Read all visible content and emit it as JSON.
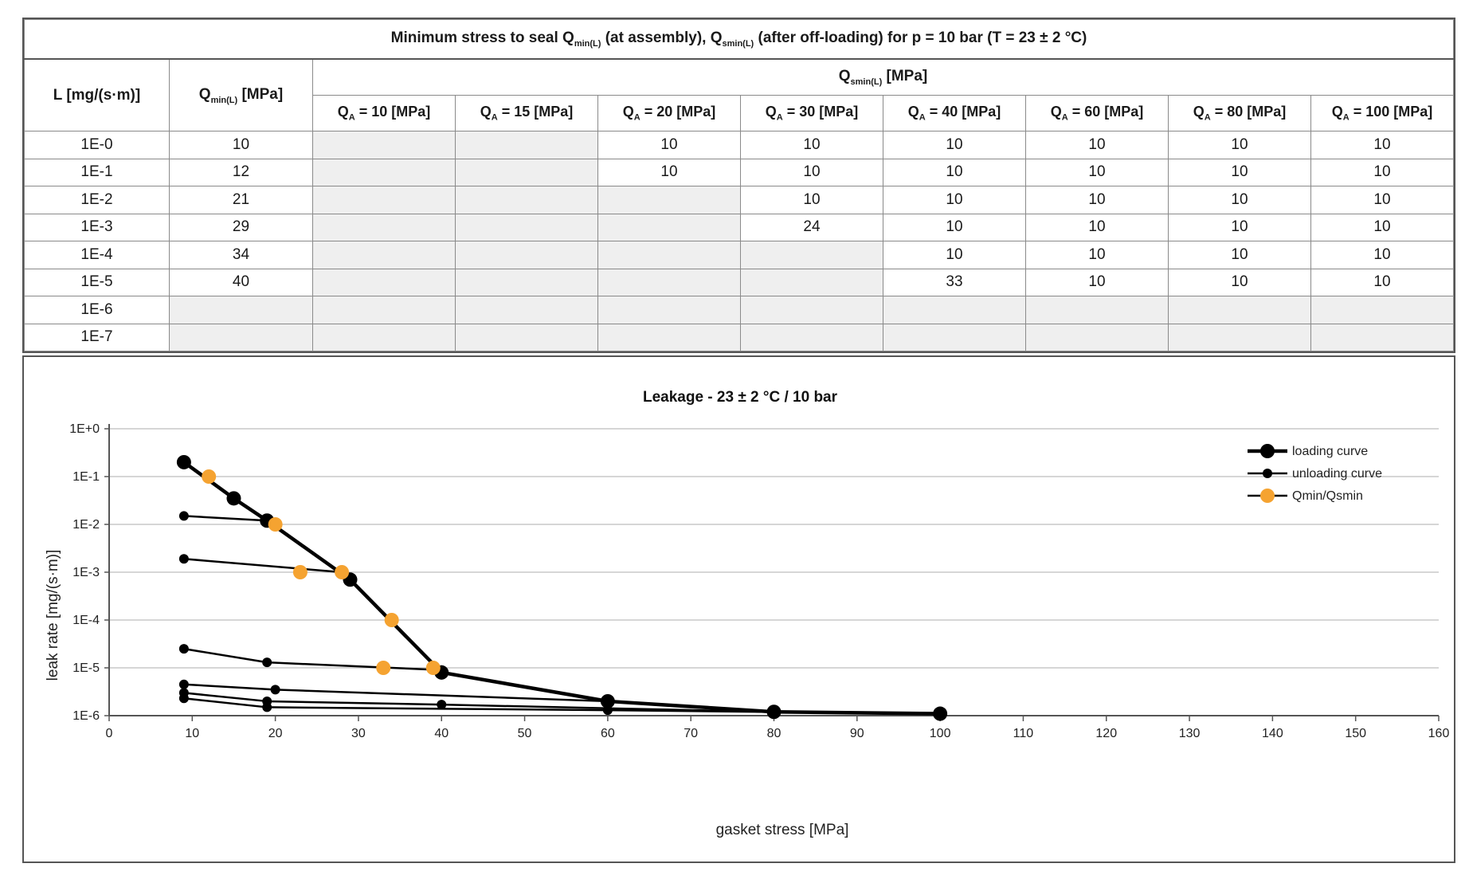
{
  "table": {
    "title_parts": [
      "Minimum stress to seal Q",
      "min(L)",
      " (at assembly), Q",
      "smin(L)",
      " (after off-loading) for p = 10 bar (T = 23 ± 2 °C)"
    ],
    "col_L": "L [mg/(s·m)]",
    "col_qmin_main": "Q",
    "col_qmin_sub": "min(L)",
    "col_qmin_unit": " [MPa]",
    "col_qsmin_main": "Q",
    "col_qsmin_sub": "smin(L)",
    "col_qsmin_unit": " [MPa]",
    "qa_headers": [
      {
        "pre": "Q",
        "sub": "A",
        "post": " = 10 [MPa]"
      },
      {
        "pre": "Q",
        "sub": "A",
        "post": " = 15 [MPa]"
      },
      {
        "pre": "Q",
        "sub": "A",
        "post": " = 20 [MPa]"
      },
      {
        "pre": "Q",
        "sub": "A",
        "post": " = 30 [MPa]"
      },
      {
        "pre": "Q",
        "sub": "A",
        "post": " = 40 [MPa]"
      },
      {
        "pre": "Q",
        "sub": "A",
        "post": " = 60 [MPa]"
      },
      {
        "pre": "Q",
        "sub": "A",
        "post": " = 80 [MPa]"
      },
      {
        "pre": "Q",
        "sub": "A",
        "post": " = 100 [MPa]"
      }
    ],
    "rows": [
      {
        "L": "1E-0",
        "qmin": "10",
        "qs": [
          "",
          "",
          "10",
          "10",
          "10",
          "10",
          "10",
          "10"
        ]
      },
      {
        "L": "1E-1",
        "qmin": "12",
        "qs": [
          "",
          "",
          "10",
          "10",
          "10",
          "10",
          "10",
          "10"
        ]
      },
      {
        "L": "1E-2",
        "qmin": "21",
        "qs": [
          "",
          "",
          "",
          "10",
          "10",
          "10",
          "10",
          "10"
        ]
      },
      {
        "L": "1E-3",
        "qmin": "29",
        "qs": [
          "",
          "",
          "",
          "24",
          "10",
          "10",
          "10",
          "10"
        ]
      },
      {
        "L": "1E-4",
        "qmin": "34",
        "qs": [
          "",
          "",
          "",
          "",
          "10",
          "10",
          "10",
          "10"
        ]
      },
      {
        "L": "1E-5",
        "qmin": "40",
        "qs": [
          "",
          "",
          "",
          "",
          "33",
          "10",
          "10",
          "10"
        ]
      },
      {
        "L": "1E-6",
        "qmin": "",
        "qs": [
          "",
          "",
          "",
          "",
          "",
          "",
          "",
          ""
        ]
      },
      {
        "L": "1E-7",
        "qmin": "",
        "qs": [
          "",
          "",
          "",
          "",
          "",
          "",
          "",
          ""
        ]
      }
    ]
  },
  "chart_data": {
    "type": "scatter",
    "title": "Leakage - 23 ± 2 °C / 10 bar",
    "xlabel": "gasket stress [MPa]",
    "ylabel": "leak rate [mg/(s·m)]",
    "xlim": [
      0,
      160
    ],
    "x_ticks": [
      0,
      10,
      20,
      30,
      40,
      50,
      60,
      70,
      80,
      90,
      100,
      110,
      120,
      130,
      140,
      150,
      160
    ],
    "y_scale": "log",
    "ylim": [
      1e-06,
      1
    ],
    "y_ticks": [
      1,
      0.1,
      0.01,
      0.001,
      0.0001,
      1e-05,
      1e-06
    ],
    "y_tick_labels": [
      "1E+0",
      "1E-1",
      "1E-2",
      "1E-3",
      "1E-4",
      "1E-5",
      "1E-6"
    ],
    "grid": "horizontal",
    "legend_position": "top-right",
    "legend": [
      "loading curve",
      "unloading curve",
      "Qmin/Qsmin"
    ],
    "colors": {
      "loading": "#000000",
      "unloading": "#000000",
      "qmin": "#f5a331"
    },
    "loading_curve": {
      "name": "loading curve",
      "x": [
        9,
        15,
        19,
        29,
        40,
        60,
        80,
        100
      ],
      "y": [
        0.2,
        0.035,
        0.012,
        0.0007,
        8e-06,
        2e-06,
        1.2e-06,
        1.1e-06
      ]
    },
    "unloading_curves": [
      {
        "x": [
          9,
          19,
          29
        ],
        "y": [
          0.015,
          0.012,
          0.0007
        ]
      },
      {
        "x": [
          9,
          28
        ],
        "y": [
          0.0019,
          0.001
        ]
      },
      {
        "x": [
          9,
          19,
          40
        ],
        "y": [
          2.5e-05,
          1.3e-05,
          9e-06
        ]
      },
      {
        "x": [
          9,
          20,
          60
        ],
        "y": [
          4.5e-06,
          3.5e-06,
          2e-06
        ]
      },
      {
        "x": [
          9,
          19,
          40,
          80
        ],
        "y": [
          3e-06,
          2e-06,
          1.7e-06,
          1.2e-06
        ]
      },
      {
        "x": [
          9,
          19,
          60,
          100
        ],
        "y": [
          2.3e-06,
          1.5e-06,
          1.3e-06,
          1.1e-06
        ]
      }
    ],
    "qmin_qsmin_points": {
      "name": "Qmin/Qsmin",
      "x": [
        12,
        20,
        23,
        28,
        34,
        33,
        39
      ],
      "y": [
        0.1,
        0.01,
        0.001,
        0.001,
        0.0001,
        1e-05,
        1e-05
      ]
    }
  }
}
